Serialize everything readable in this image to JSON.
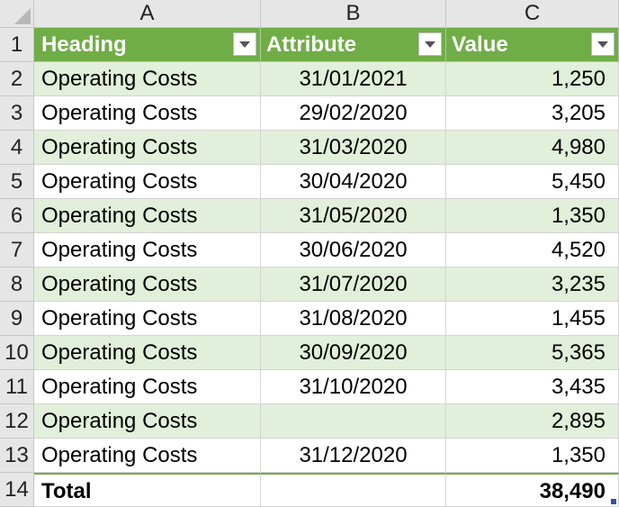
{
  "columns": [
    "A",
    "B",
    "C"
  ],
  "header": {
    "row": "1",
    "heading": "Heading",
    "attribute": "Attribute",
    "value": "Value"
  },
  "rows": [
    {
      "row": "2",
      "heading": "Operating Costs",
      "attribute": "31/01/2021",
      "value": "1,250"
    },
    {
      "row": "3",
      "heading": "Operating Costs",
      "attribute": "29/02/2020",
      "value": "3,205"
    },
    {
      "row": "4",
      "heading": "Operating Costs",
      "attribute": "31/03/2020",
      "value": "4,980"
    },
    {
      "row": "5",
      "heading": "Operating Costs",
      "attribute": "30/04/2020",
      "value": "5,450"
    },
    {
      "row": "6",
      "heading": "Operating Costs",
      "attribute": "31/05/2020",
      "value": "1,350"
    },
    {
      "row": "7",
      "heading": "Operating Costs",
      "attribute": "30/06/2020",
      "value": "4,520"
    },
    {
      "row": "8",
      "heading": "Operating Costs",
      "attribute": "31/07/2020",
      "value": "3,235"
    },
    {
      "row": "9",
      "heading": "Operating Costs",
      "attribute": "31/08/2020",
      "value": "1,455"
    },
    {
      "row": "10",
      "heading": "Operating Costs",
      "attribute": "30/09/2020",
      "value": "5,365"
    },
    {
      "row": "11",
      "heading": "Operating Costs",
      "attribute": "31/10/2020",
      "value": "3,435"
    },
    {
      "row": "12",
      "heading": "Operating Costs",
      "attribute": "",
      "value": "2,895"
    },
    {
      "row": "13",
      "heading": "Operating Costs",
      "attribute": "31/12/2020",
      "value": "1,350"
    }
  ],
  "total": {
    "row": "14",
    "heading": "Total",
    "attribute": "",
    "value": "38,490"
  },
  "colors": {
    "header_fill": "#70ad47",
    "band_fill": "#e2efda",
    "header_text": "#ffffff"
  }
}
